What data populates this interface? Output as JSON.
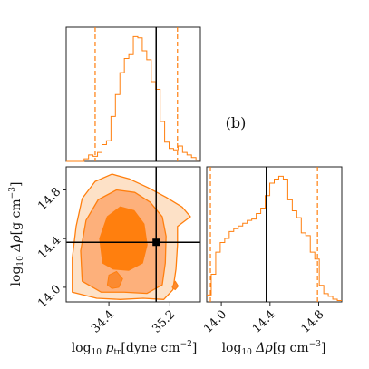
{
  "chart_data": {
    "type": "corner",
    "panel_label": "(b)",
    "accent_color": "#ff7f0e",
    "truth_color": "#000000",
    "parameters": [
      {
        "key": "log10_ptr",
        "axis_label_prefix": "log",
        "axis_label_base": "10",
        "axis_label_rest": " p",
        "axis_label_sub": "tr",
        "axis_label_units": "[dyne cm",
        "axis_label_exp": "−2",
        "axis_label_close": "]",
        "range": [
          33.84,
          35.6
        ],
        "ticks": [
          34.4,
          35.2
        ],
        "tick_labels": [
          "34.4",
          "35.2"
        ],
        "truth": 35.02,
        "quantiles": [
          34.22,
          35.3
        ]
      },
      {
        "key": "log10_drho",
        "axis_label_prefix": "log",
        "axis_label_base": "10",
        "axis_label_rest": " Δρ",
        "axis_label_units": "[g cm",
        "axis_label_exp": "−3",
        "axis_label_close": "]",
        "range": [
          13.88,
          14.99
        ],
        "ticks": [
          14.0,
          14.4,
          14.8
        ],
        "tick_labels": [
          "14.0",
          "14.4",
          "14.8"
        ],
        "truth": 14.37,
        "quantiles": [
          13.91,
          14.79
        ]
      }
    ],
    "hist_ptr": {
      "bin_start": 33.84,
      "bin_width": 0.0587,
      "counts": [
        0,
        0,
        0,
        0,
        0.02,
        0.05,
        0.04,
        0.07,
        0.13,
        0.16,
        0.35,
        0.52,
        0.69,
        0.8,
        0.83,
        0.97,
        0.96,
        0.86,
        0.79,
        0.62,
        0.56,
        0.31,
        0.15,
        0.1,
        0.09,
        0.12,
        0.07,
        0.05,
        0.03,
        0.01
      ]
    },
    "hist_drho": {
      "bin_start": 13.88,
      "bin_width": 0.037,
      "counts": [
        0.05,
        0.2,
        0.36,
        0.43,
        0.46,
        0.51,
        0.53,
        0.55,
        0.57,
        0.59,
        0.6,
        0.64,
        0.68,
        0.77,
        0.86,
        0.89,
        0.91,
        0.89,
        0.74,
        0.66,
        0.61,
        0.5,
        0.48,
        0.36,
        0.31,
        0.12,
        0.06,
        0.04,
        0.02,
        0.01
      ]
    },
    "contours": {
      "outer": [
        [
          33.92,
          13.96
        ],
        [
          33.92,
          14.24
        ],
        [
          33.97,
          14.5
        ],
        [
          34.05,
          14.73
        ],
        [
          34.22,
          14.87
        ],
        [
          34.44,
          14.93
        ],
        [
          34.67,
          14.89
        ],
        [
          34.91,
          14.82
        ],
        [
          35.15,
          14.74
        ],
        [
          35.36,
          14.66
        ],
        [
          35.47,
          14.58
        ],
        [
          35.3,
          14.5
        ],
        [
          35.3,
          14.35
        ],
        [
          35.28,
          14.15
        ],
        [
          35.24,
          13.98
        ],
        [
          35.12,
          13.9
        ],
        [
          34.85,
          13.91
        ],
        [
          34.55,
          13.9
        ],
        [
          34.24,
          13.91
        ]
      ],
      "middle": [
        [
          34.05,
          14.05
        ],
        [
          34.03,
          14.3
        ],
        [
          34.1,
          14.55
        ],
        [
          34.26,
          14.72
        ],
        [
          34.5,
          14.8
        ],
        [
          34.74,
          14.78
        ],
        [
          34.94,
          14.7
        ],
        [
          35.1,
          14.58
        ],
        [
          35.15,
          14.42
        ],
        [
          35.14,
          14.2
        ],
        [
          35.1,
          14.02
        ],
        [
          34.9,
          13.95
        ],
        [
          34.6,
          13.96
        ],
        [
          34.3,
          13.96
        ]
      ],
      "inner": [
        [
          34.32,
          14.2
        ],
        [
          34.28,
          14.4
        ],
        [
          34.38,
          14.58
        ],
        [
          34.55,
          14.66
        ],
        [
          34.73,
          14.63
        ],
        [
          34.86,
          14.52
        ],
        [
          34.9,
          14.35
        ],
        [
          34.84,
          14.2
        ],
        [
          34.66,
          14.14
        ],
        [
          34.46,
          14.15
        ]
      ],
      "islands": [
        [
          [
            34.38,
            14.02
          ],
          [
            34.4,
            14.1
          ],
          [
            34.5,
            14.13
          ],
          [
            34.58,
            14.07
          ],
          [
            34.53,
            14.0
          ],
          [
            34.44,
            13.99
          ]
        ],
        [
          [
            35.23,
            14.0
          ],
          [
            35.27,
            14.05
          ],
          [
            35.31,
            14.01
          ],
          [
            35.27,
            13.98
          ]
        ]
      ]
    },
    "truth_point": [
      35.02,
      14.37
    ]
  }
}
